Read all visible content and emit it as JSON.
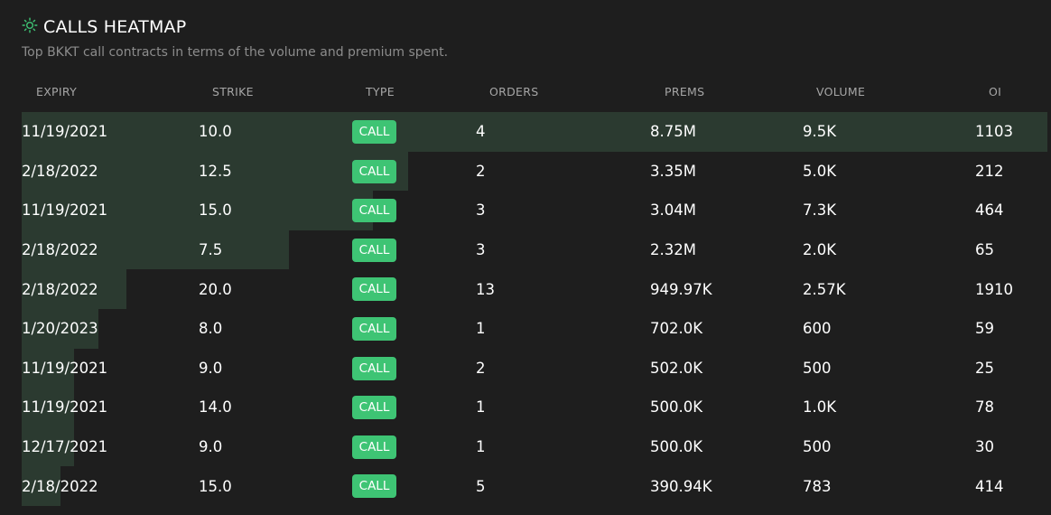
{
  "header": {
    "title": "CALLS HEATMAP",
    "subtitle": "Top BKKT call contracts in terms of the volume and premium spent.",
    "icon": "sun-icon"
  },
  "colors": {
    "background": "#1e1e1e",
    "heat_bar": "#2b3a30",
    "call_badge": "#3ec474",
    "icon_accent": "#3ec474"
  },
  "columns": {
    "expiry": "EXPIRY",
    "strike": "STRIKE",
    "type": "TYPE",
    "orders": "ORDERS",
    "prems": "PREMS",
    "volume": "VOLUME",
    "oi": "OI"
  },
  "rows": [
    {
      "expiry": "11/19/2021",
      "strike": "10.0",
      "type": "CALL",
      "orders": "4",
      "prems": "8.75M",
      "volume": "9.5K",
      "oi": "1103",
      "heat": 1.0
    },
    {
      "expiry": "2/18/2022",
      "strike": "12.5",
      "type": "CALL",
      "orders": "2",
      "prems": "3.35M",
      "volume": "5.0K",
      "oi": "212",
      "heat": 0.377
    },
    {
      "expiry": "11/19/2021",
      "strike": "15.0",
      "type": "CALL",
      "orders": "3",
      "prems": "3.04M",
      "volume": "7.3K",
      "oi": "464",
      "heat": 0.342
    },
    {
      "expiry": "2/18/2022",
      "strike": "7.5",
      "type": "CALL",
      "orders": "3",
      "prems": "2.32M",
      "volume": "2.0K",
      "oi": "65",
      "heat": 0.261
    },
    {
      "expiry": "2/18/2022",
      "strike": "20.0",
      "type": "CALL",
      "orders": "13",
      "prems": "949.97K",
      "volume": "2.57K",
      "oi": "1910",
      "heat": 0.102
    },
    {
      "expiry": "1/20/2023",
      "strike": "8.0",
      "type": "CALL",
      "orders": "1",
      "prems": "702.0K",
      "volume": "600",
      "oi": "59",
      "heat": 0.075
    },
    {
      "expiry": "11/19/2021",
      "strike": "9.0",
      "type": "CALL",
      "orders": "2",
      "prems": "502.0K",
      "volume": "500",
      "oi": "25",
      "heat": 0.051
    },
    {
      "expiry": "11/19/2021",
      "strike": "14.0",
      "type": "CALL",
      "orders": "1",
      "prems": "500.0K",
      "volume": "1.0K",
      "oi": "78",
      "heat": 0.051
    },
    {
      "expiry": "12/17/2021",
      "strike": "9.0",
      "type": "CALL",
      "orders": "1",
      "prems": "500.0K",
      "volume": "500",
      "oi": "30",
      "heat": 0.051
    },
    {
      "expiry": "2/18/2022",
      "strike": "15.0",
      "type": "CALL",
      "orders": "5",
      "prems": "390.94K",
      "volume": "783",
      "oi": "414",
      "heat": 0.038
    }
  ]
}
